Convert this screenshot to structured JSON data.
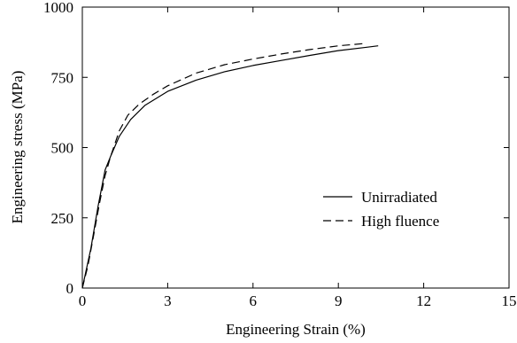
{
  "chart_data": {
    "type": "line",
    "title": "",
    "xlabel": "Engineering Strain (%)",
    "ylabel": "Engineering stress (MPa)",
    "xlim": [
      0,
      15
    ],
    "ylim": [
      0,
      1000
    ],
    "x_ticks": [
      0,
      3,
      6,
      9,
      12,
      15
    ],
    "y_ticks": [
      0,
      250,
      500,
      750,
      1000
    ],
    "x_tick_labels": [
      "0",
      "3",
      "6",
      "9",
      "12",
      "15"
    ],
    "y_tick_labels": [
      "0",
      "250",
      "500",
      "750",
      "1000"
    ],
    "grid": false,
    "legend_position": "right",
    "series": [
      {
        "name": "Unirradiated",
        "line_style": "solid",
        "color": "#000000",
        "points": [
          [
            0.0,
            0
          ],
          [
            0.3,
            140
          ],
          [
            0.55,
            290
          ],
          [
            0.8,
            420
          ],
          [
            1.0,
            470
          ],
          [
            1.3,
            540
          ],
          [
            1.7,
            600
          ],
          [
            2.2,
            650
          ],
          [
            3.0,
            700
          ],
          [
            4.0,
            740
          ],
          [
            5.0,
            770
          ],
          [
            6.0,
            792
          ],
          [
            7.0,
            810
          ],
          [
            8.0,
            828
          ],
          [
            9.0,
            845
          ],
          [
            10.0,
            857
          ],
          [
            10.4,
            862
          ]
        ]
      },
      {
        "name": "High fluence",
        "line_style": "dashed",
        "color": "#000000",
        "points": [
          [
            0.0,
            0
          ],
          [
            0.2,
            80
          ],
          [
            0.4,
            190
          ],
          [
            0.6,
            300
          ],
          [
            0.8,
            400
          ],
          [
            1.0,
            470
          ],
          [
            1.3,
            560
          ],
          [
            1.6,
            615
          ],
          [
            2.0,
            655
          ],
          [
            2.5,
            690
          ],
          [
            3.0,
            720
          ],
          [
            4.0,
            765
          ],
          [
            5.0,
            795
          ],
          [
            6.0,
            815
          ],
          [
            7.0,
            833
          ],
          [
            8.0,
            849
          ],
          [
            9.0,
            862
          ],
          [
            10.0,
            871
          ]
        ]
      }
    ]
  }
}
